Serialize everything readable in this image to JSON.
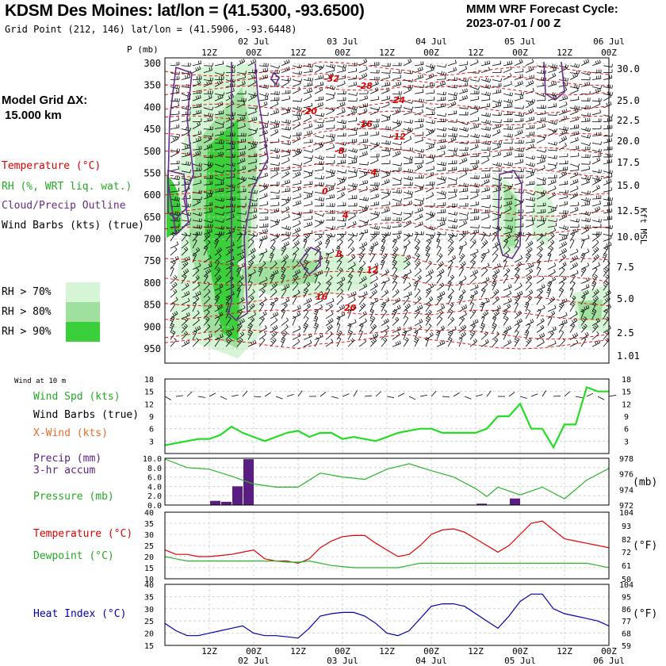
{
  "header": {
    "title": "KDSM Des Moines:  lat/lon = (41.5300, -93.6500)",
    "subtitle": "Grid Point (212, 146) lat/lon = (41.5906, -93.6448)",
    "cycle_line1": "MMM WRF Forecast Cycle:",
    "cycle_line2": "2023-07-01 / 00  Z",
    "model_grid_line1": "Model Grid ΔX:",
    "model_grid_line2": "15.000 km"
  },
  "legend": {
    "temperature": "Temperature (°C)",
    "rh": "RH (%, WRT liq. wat.)",
    "cloud": "Cloud/Precip Outline",
    "wind": "Wind Barbs (kts) (true)",
    "rh70": "RH > 70%",
    "rh80": "RH > 80%",
    "rh90": "RH > 90%",
    "wind10": "Wind at 10 m",
    "wspd": "Wind Spd (kts)",
    "wbarbs": "Wind Barbs (true)",
    "xwind": "X-Wind (kts)",
    "precip1": "Precip (mm)",
    "precip2": "3-hr accum",
    "pressure": "Pressure (mb)",
    "temp": "Temperature (°C)",
    "dewpoint": "Dewpoint (°C)",
    "heat": "Heat Index (°C)",
    "unit_mb": "(mb)",
    "unit_f1": "(°F)",
    "unit_f2": "(°F)",
    "kft": "Kft MSL",
    "p_mb": "P (mb)"
  },
  "colors": {
    "temperature": "#e00000",
    "rh": "#22aa22",
    "cloud": "#6a2a8a",
    "wind": "#000000",
    "precip": "#5a1e82",
    "pressure": "#2bb52b",
    "dewpoint": "#2bb52b",
    "heat": "#0000aa",
    "wspd": "#22dd22",
    "rh70": "#d6f5d6",
    "rh80": "#9fe09f",
    "rh90": "#3ccf3c"
  },
  "chart_data": [
    {
      "type": "heatmap",
      "title": "Time-height cross section",
      "x_time_labels_top": [
        "12Z",
        "00Z",
        "12Z",
        "00Z",
        "12Z",
        "00Z",
        "12Z",
        "00Z",
        "12Z",
        "00Z"
      ],
      "x_date_labels_top": [
        "02 Jul",
        "03 Jul",
        "04 Jul",
        "05 Jul",
        "06 Jul"
      ],
      "pressure_levels_mb": [
        "300",
        "350",
        "400",
        "450",
        "500",
        "550",
        "600",
        "650",
        "700",
        "750",
        "800",
        "850",
        "900",
        "950"
      ],
      "height_kft": [
        "30.0",
        "25.0",
        "22.5",
        "20.0",
        "17.5",
        "15.0",
        "12.5",
        "10.0",
        "7.5",
        "5.0",
        "2.5",
        "1.01"
      ],
      "temperature_contour_labels_c": [
        "-32",
        "-28",
        "-24",
        "-20",
        "-16",
        "-12",
        "-8",
        "-4",
        "0",
        "4",
        "8",
        "12",
        "16",
        "20"
      ]
    },
    {
      "type": "line",
      "title": "Wind Spd (kts)",
      "yticks": [
        "18",
        "15",
        "12",
        "9",
        "6",
        "3"
      ],
      "ylim": [
        0,
        18
      ],
      "x": [
        0,
        3,
        6,
        9,
        12,
        15,
        18,
        21,
        24,
        27,
        30,
        33,
        36,
        39,
        42,
        45,
        48,
        51,
        54,
        57,
        60,
        63,
        66,
        69,
        72,
        75,
        78,
        81,
        84,
        87,
        90,
        93,
        96,
        99,
        102,
        105,
        108,
        111,
        114,
        117,
        120
      ],
      "values": [
        2,
        2.5,
        3,
        3.5,
        3.5,
        4.5,
        6.5,
        5,
        4,
        3,
        4,
        5,
        5.5,
        4,
        5,
        5,
        3.5,
        4,
        3.5,
        3,
        4,
        5,
        5.5,
        6,
        6,
        5,
        5,
        5,
        5,
        6,
        9,
        9,
        12,
        6,
        6,
        1.5,
        7,
        7,
        16,
        15,
        15
      ]
    },
    {
      "type": "bar",
      "title": "Precip (mm) 3-hr accum",
      "yticks": [
        "10.0",
        "8.0",
        "6.0",
        "4.0",
        "2.0",
        "0.0"
      ],
      "ylim": [
        0,
        10
      ],
      "x": [
        15,
        18,
        21,
        24,
        87,
        96
      ],
      "values": [
        0.9,
        0.7,
        4.0,
        9.8,
        0.3,
        1.4
      ]
    },
    {
      "type": "line",
      "title": "Pressure (mb)",
      "yticks": [
        "978",
        "976",
        "974",
        "972"
      ],
      "ylim": [
        972,
        978
      ],
      "x": [
        0,
        6,
        12,
        18,
        24,
        30,
        36,
        42,
        48,
        54,
        60,
        66,
        72,
        78,
        84,
        87,
        90,
        96,
        102,
        108,
        114,
        120
      ],
      "values": [
        977.9,
        976.8,
        976.6,
        975.7,
        974.7,
        974.3,
        974.3,
        976.1,
        975.6,
        975.3,
        976.6,
        977.3,
        976.4,
        975.6,
        974.1,
        973.1,
        974.3,
        973.3,
        974.3,
        972.8,
        975.2,
        976.7
      ]
    },
    {
      "type": "line",
      "title": "Temperature / Dewpoint",
      "yticks_c": [
        "40",
        "35",
        "30",
        "25",
        "20",
        "15",
        "10"
      ],
      "yticks_f": [
        "104",
        "93",
        "82",
        "72",
        "61",
        "50"
      ],
      "ylim": [
        10,
        40
      ],
      "x": [
        0,
        3,
        6,
        9,
        12,
        15,
        18,
        21,
        24,
        27,
        30,
        33,
        36,
        39,
        42,
        45,
        48,
        51,
        54,
        57,
        60,
        63,
        66,
        69,
        72,
        75,
        78,
        81,
        84,
        87,
        90,
        93,
        96,
        99,
        102,
        105,
        108,
        111,
        114,
        117,
        120
      ],
      "series": [
        {
          "name": "Temperature",
          "values": [
            23,
            21,
            21,
            20,
            20,
            20.5,
            21,
            22,
            23,
            19,
            18,
            18,
            17,
            19,
            24,
            27,
            29,
            29.5,
            29.5,
            26,
            23,
            20,
            21,
            25,
            30,
            32,
            32.5,
            31,
            28,
            25,
            22,
            25,
            30,
            35,
            36,
            32,
            28,
            27,
            26,
            25,
            24
          ]
        },
        {
          "name": "Dewpoint",
          "values": [
            20,
            19,
            18,
            18,
            18,
            18,
            18,
            18,
            18,
            18,
            18,
            17.5,
            17.5,
            18,
            17,
            16,
            15.5,
            15,
            15,
            15,
            15,
            15,
            16,
            17,
            17,
            17,
            17,
            17,
            17,
            17,
            17,
            17,
            17,
            17,
            17,
            17,
            17,
            17,
            17,
            16,
            15
          ]
        }
      ]
    },
    {
      "type": "line",
      "title": "Heat Index (°C)",
      "yticks_c": [
        "40",
        "35",
        "30",
        "25",
        "20",
        "15"
      ],
      "yticks_f": [
        "104",
        "95",
        "86",
        "77",
        "68",
        "59"
      ],
      "ylim": [
        15,
        40
      ],
      "x_time_labels_bottom": [
        "12Z",
        "00Z",
        "12Z",
        "00Z",
        "12Z",
        "00Z",
        "12Z",
        "00Z",
        "12Z",
        "00Z"
      ],
      "x_date_labels_bottom": [
        "02 Jul",
        "03 Jul",
        "04 Jul",
        "05 Jul",
        "06 Jul"
      ],
      "x": [
        0,
        3,
        6,
        9,
        12,
        15,
        18,
        21,
        24,
        27,
        30,
        33,
        36,
        39,
        42,
        45,
        48,
        51,
        54,
        57,
        60,
        63,
        66,
        69,
        72,
        75,
        78,
        81,
        84,
        87,
        90,
        93,
        96,
        99,
        102,
        105,
        108,
        111,
        114,
        117,
        120
      ],
      "values": [
        24,
        21,
        19,
        19,
        20,
        21,
        22,
        23,
        20,
        19,
        19,
        18.5,
        18,
        22,
        27,
        28,
        28.5,
        28.5,
        27,
        24,
        20,
        19,
        21,
        26,
        31,
        32,
        32,
        31,
        28,
        25,
        22,
        27,
        33,
        36,
        36,
        30,
        28,
        27,
        26,
        25,
        23
      ]
    }
  ]
}
